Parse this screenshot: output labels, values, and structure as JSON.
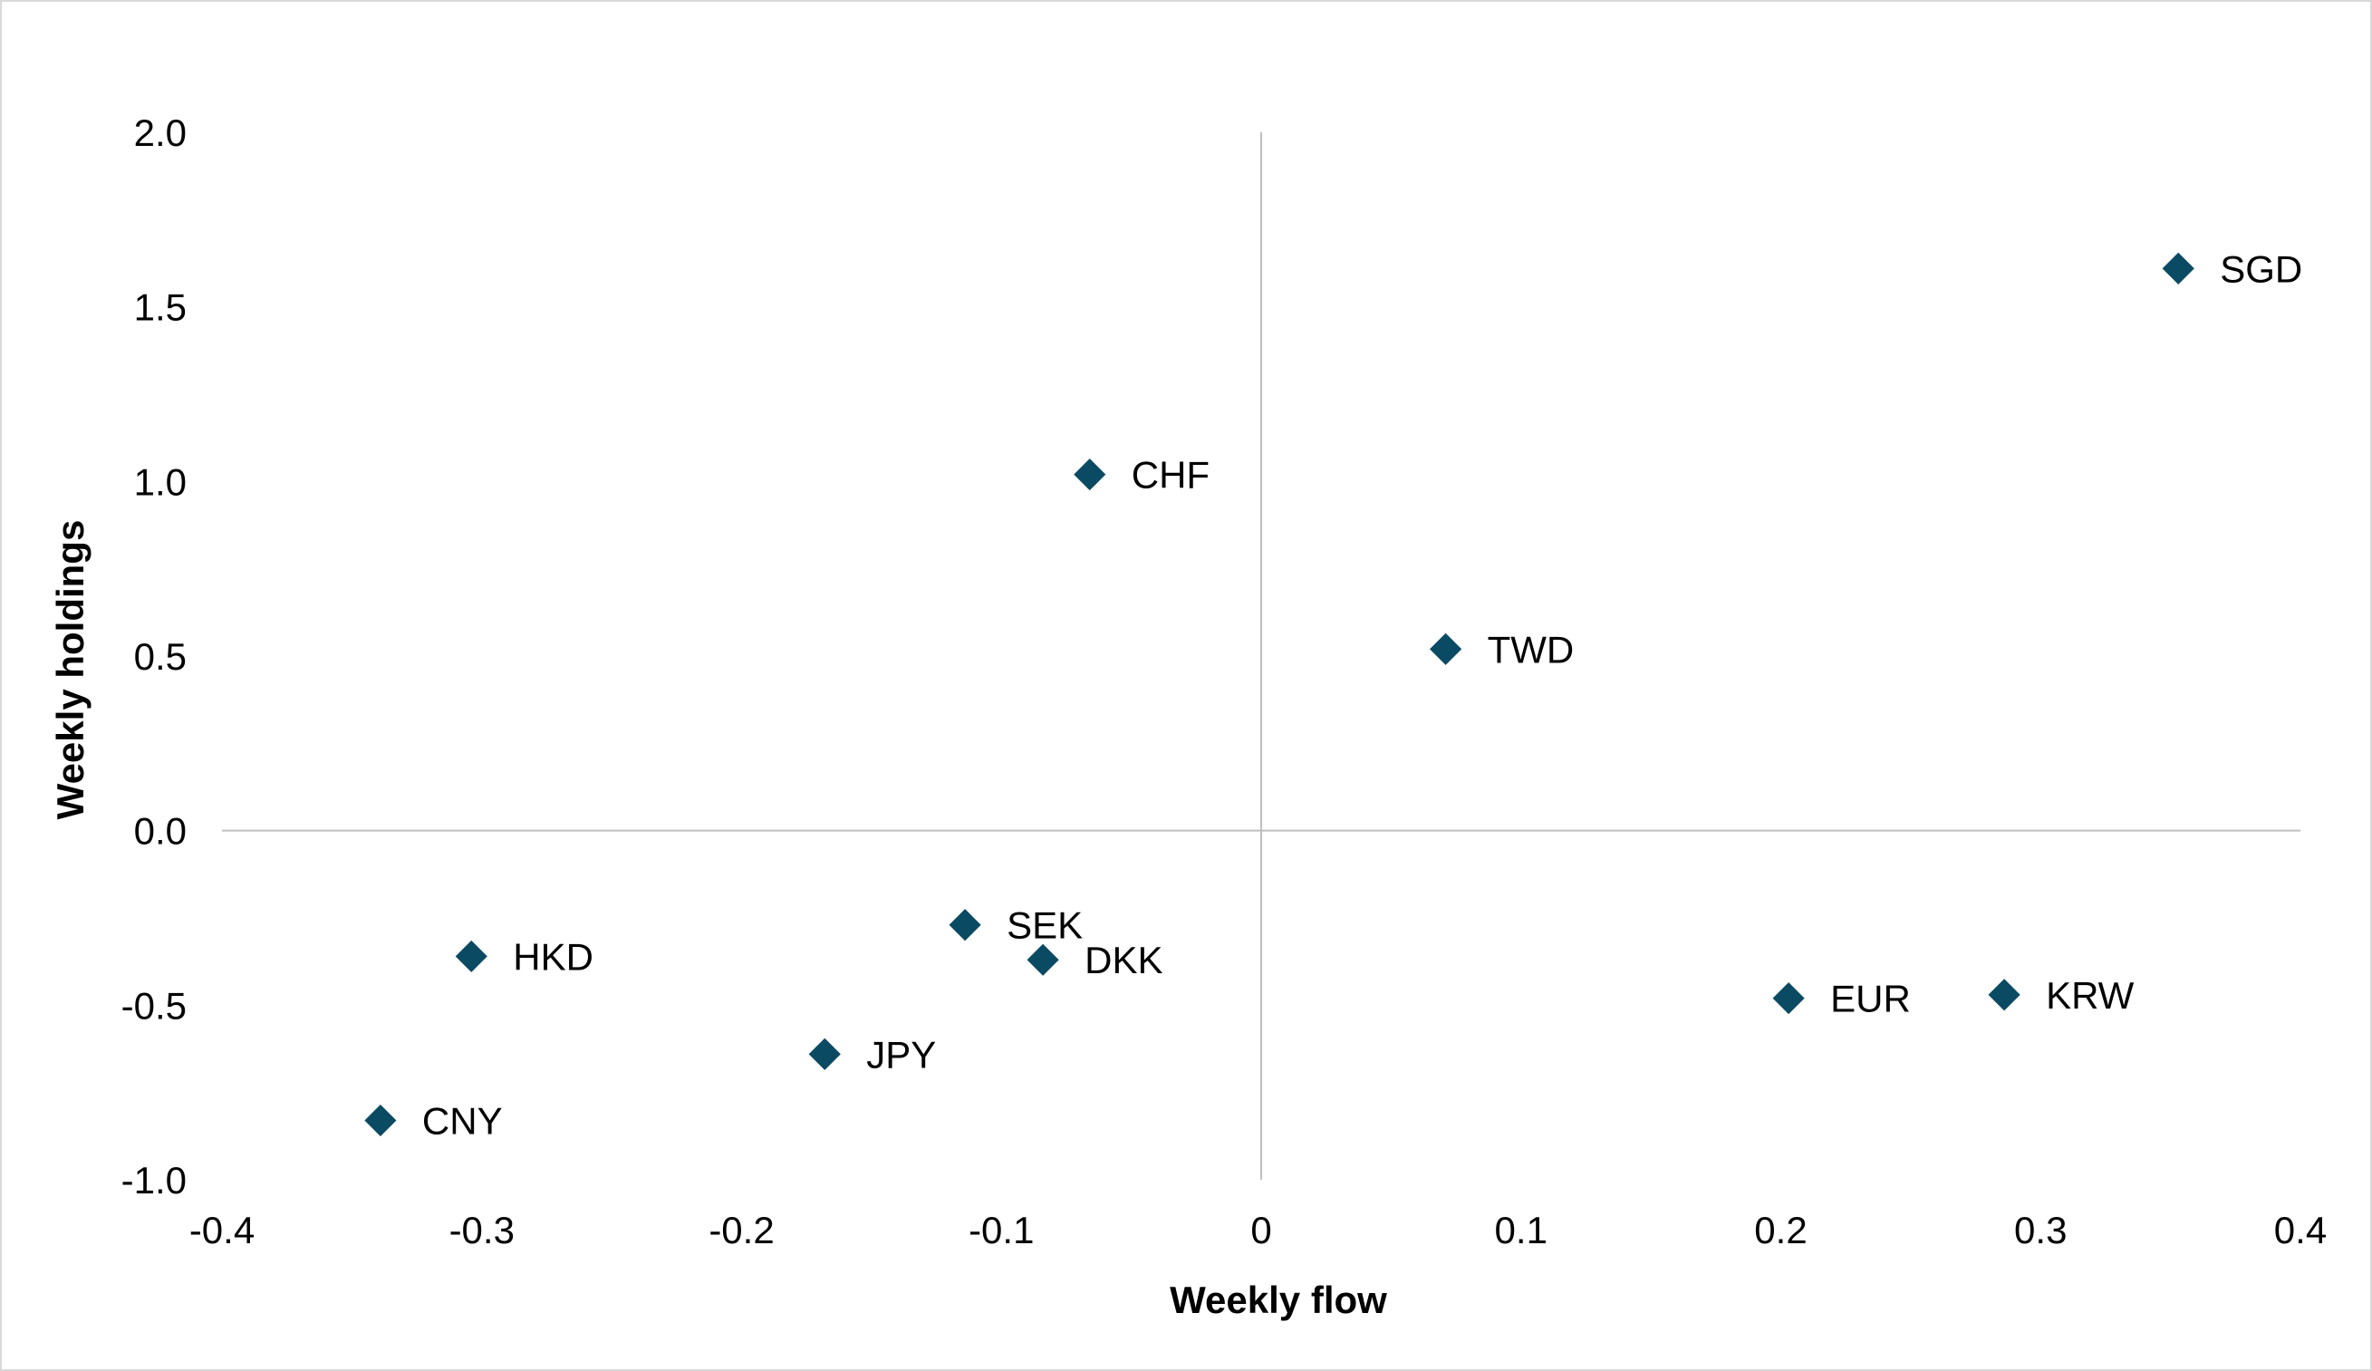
{
  "chart_data": {
    "type": "scatter",
    "title": "",
    "xlabel": "Weekly flow",
    "ylabel": "Weekly holdings",
    "xlim": [
      -0.4,
      0.4
    ],
    "ylim": [
      -1.0,
      2.0
    ],
    "x_ticks": [
      -0.4,
      -0.3,
      -0.2,
      -0.1,
      0,
      0.1,
      0.2,
      0.3,
      0.4
    ],
    "x_tick_labels": [
      "-0.4",
      "-0.3",
      "-0.2",
      "-0.1",
      "0",
      "0.1",
      "0.2",
      "0.3",
      "0.4"
    ],
    "y_ticks": [
      2.0,
      1.5,
      1.0,
      0.5,
      0.0,
      -0.5,
      -1.0
    ],
    "y_tick_labels": [
      "2.0",
      "1.5",
      "1.0",
      "0.5",
      "0.0",
      "-0.5",
      "-1.0"
    ],
    "grid": false,
    "marker": "diamond",
    "marker_color": "#0b4a63",
    "marker_edge_color": "#ffffff",
    "axis_line_color": "#bfbfbf",
    "points": [
      {
        "label": "SGD",
        "x": 0.353,
        "y": 1.61
      },
      {
        "label": "CHF",
        "x": -0.066,
        "y": 1.02
      },
      {
        "label": "TWD",
        "x": 0.071,
        "y": 0.52
      },
      {
        "label": "SEK",
        "x": -0.114,
        "y": -0.27
      },
      {
        "label": "DKK",
        "x": -0.084,
        "y": -0.37
      },
      {
        "label": "HKD",
        "x": -0.304,
        "y": -0.36
      },
      {
        "label": "JPY",
        "x": -0.168,
        "y": -0.64
      },
      {
        "label": "CNY",
        "x": -0.339,
        "y": -0.83
      },
      {
        "label": "EUR",
        "x": 0.203,
        "y": -0.48
      },
      {
        "label": "KRW",
        "x": 0.286,
        "y": -0.47
      }
    ]
  }
}
